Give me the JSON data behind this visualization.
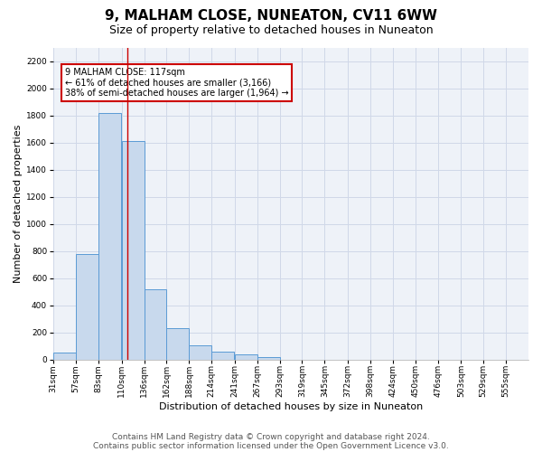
{
  "title": "9, MALHAM CLOSE, NUNEATON, CV11 6WW",
  "subtitle": "Size of property relative to detached houses in Nuneaton",
  "xlabel": "Distribution of detached houses by size in Nuneaton",
  "ylabel": "Number of detached properties",
  "footnote1": "Contains HM Land Registry data © Crown copyright and database right 2024.",
  "footnote2": "Contains public sector information licensed under the Open Government Licence v3.0.",
  "bar_labels": [
    "31sqm",
    "57sqm",
    "83sqm",
    "110sqm",
    "136sqm",
    "162sqm",
    "188sqm",
    "214sqm",
    "241sqm",
    "267sqm",
    "293sqm",
    "319sqm",
    "345sqm",
    "372sqm",
    "398sqm",
    "424sqm",
    "450sqm",
    "476sqm",
    "503sqm",
    "529sqm",
    "555sqm"
  ],
  "bar_values": [
    50,
    780,
    1820,
    1610,
    515,
    230,
    103,
    55,
    35,
    20,
    0,
    0,
    0,
    0,
    0,
    0,
    0,
    0,
    0,
    0,
    0
  ],
  "bar_color": "#c8d9ed",
  "bar_edge_color": "#5b9bd5",
  "red_line_x": 117,
  "bin_edges": [
    31,
    57,
    83,
    110,
    136,
    162,
    188,
    214,
    241,
    267,
    293,
    319,
    345,
    372,
    398,
    424,
    450,
    476,
    503,
    529,
    555
  ],
  "annotation_text": "9 MALHAM CLOSE: 117sqm\n← 61% of detached houses are smaller (3,166)\n38% of semi-detached houses are larger (1,964) →",
  "annotation_box_color": "#ffffff",
  "annotation_box_edge": "#cc0000",
  "ylim": [
    0,
    2300
  ],
  "yticks": [
    0,
    200,
    400,
    600,
    800,
    1000,
    1200,
    1400,
    1600,
    1800,
    2000,
    2200
  ],
  "grid_color": "#d0d8e8",
  "background_color": "#eef2f8",
  "title_fontsize": 11,
  "subtitle_fontsize": 9,
  "axis_label_fontsize": 8,
  "tick_fontsize": 6.5,
  "footnote_fontsize": 6.5,
  "annotation_fontsize": 7
}
